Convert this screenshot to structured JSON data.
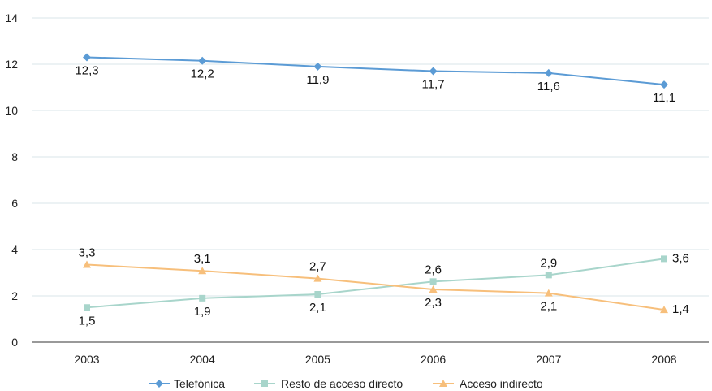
{
  "chart_data": {
    "type": "line",
    "title": "",
    "xlabel": "",
    "ylabel": "",
    "categories": [
      "2003",
      "2004",
      "2005",
      "2006",
      "2007",
      "2008"
    ],
    "ylim": [
      0,
      14
    ],
    "yticks": [
      0,
      2,
      4,
      6,
      8,
      10,
      12,
      14
    ],
    "grid": true,
    "legend_position": "bottom",
    "series": [
      {
        "name": "Telefónica",
        "values": [
          12.3,
          12.15,
          11.9,
          11.7,
          11.62,
          11.12
        ],
        "labels": [
          "12,3",
          "12,2",
          "11,9",
          "11,7",
          "11,6",
          "11,1"
        ],
        "color": "#5b9bd5",
        "marker": "diamond"
      },
      {
        "name": "Resto de acceso directo",
        "values": [
          1.5,
          1.9,
          2.07,
          2.62,
          2.9,
          3.6
        ],
        "labels": [
          "1,5",
          "1,9",
          "2,1",
          "2,6",
          "2,9",
          "3,6"
        ],
        "color": "#a8d5cb",
        "marker": "square"
      },
      {
        "name": "Acceso indirecto",
        "values": [
          3.35,
          3.08,
          2.75,
          2.28,
          2.12,
          1.4
        ],
        "labels": [
          "3,3",
          "3,1",
          "2,7",
          "2,3",
          "2,1",
          "1,4"
        ],
        "color": "#f7bf7b",
        "marker": "triangle"
      }
    ]
  }
}
